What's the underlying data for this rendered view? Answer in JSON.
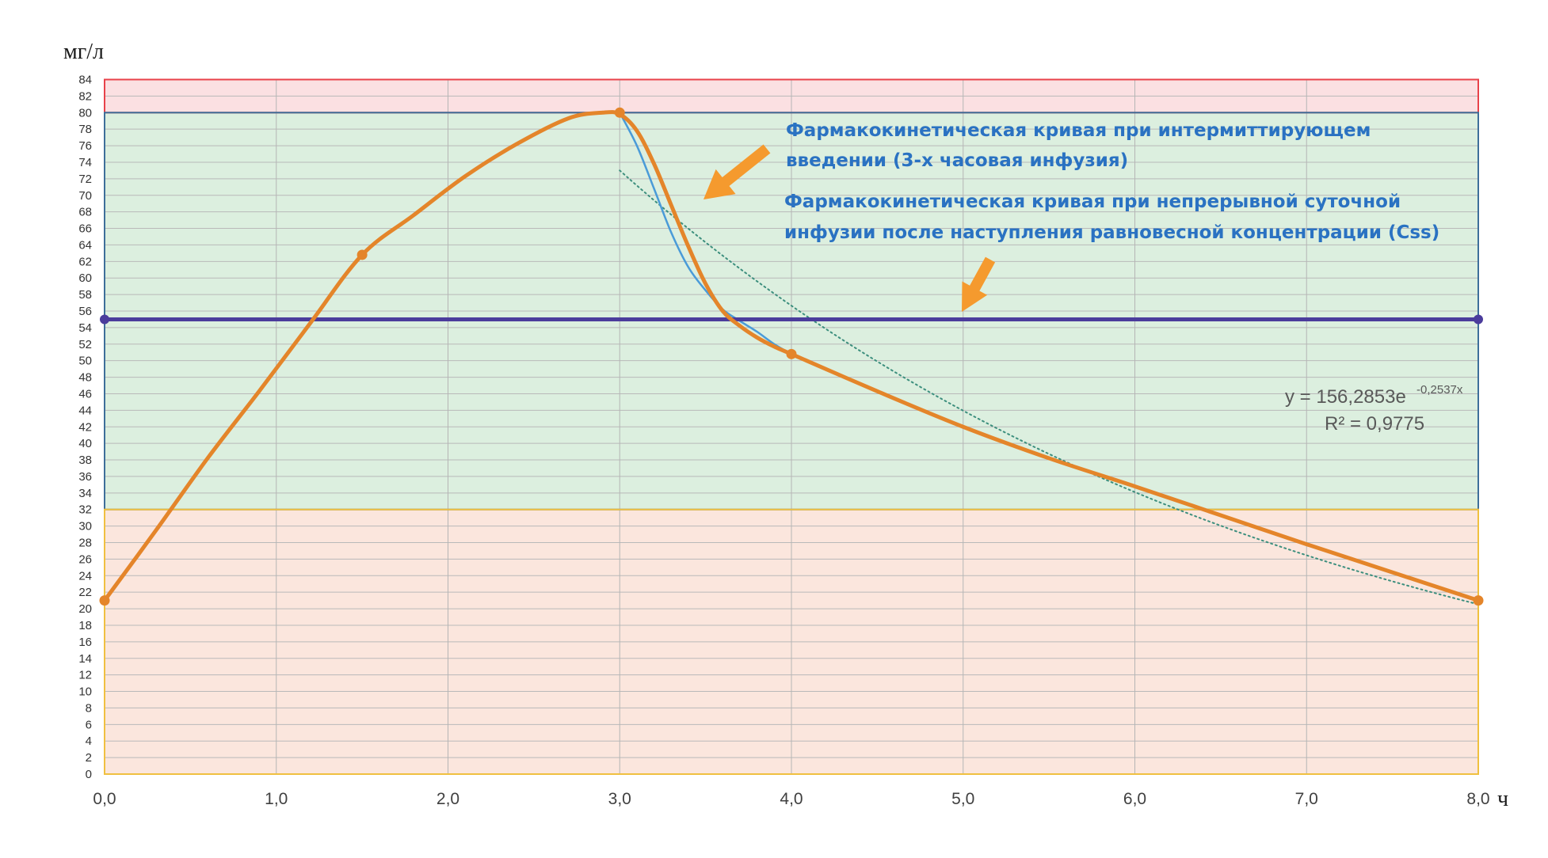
{
  "chart_data": {
    "type": "line",
    "ylabel": "мг/л",
    "xlabel": "ч",
    "xlim": [
      0,
      8
    ],
    "ylim": [
      0,
      84
    ],
    "x_ticks": [
      "0,0",
      "1,0",
      "2,0",
      "3,0",
      "4,0",
      "5,0",
      "6,0",
      "7,0",
      "8,0"
    ],
    "y_ticks": [
      "0",
      "2",
      "4",
      "6",
      "8",
      "10",
      "12",
      "14",
      "16",
      "18",
      "20",
      "22",
      "24",
      "26",
      "28",
      "30",
      "32",
      "34",
      "36",
      "38",
      "40",
      "42",
      "44",
      "46",
      "48",
      "50",
      "52",
      "54",
      "56",
      "58",
      "60",
      "62",
      "64",
      "66",
      "68",
      "70",
      "72",
      "74",
      "76",
      "78",
      "80",
      "82",
      "84"
    ],
    "grid": true,
    "bands": [
      {
        "name": "toxic",
        "from": 80,
        "to": 84,
        "fill": "#fbe0e2",
        "stroke": "#e8424a"
      },
      {
        "name": "therapeutic",
        "from": 32,
        "to": 80,
        "fill": "#dcefdf",
        "stroke": "#3e6f9a"
      },
      {
        "name": "subtherapeutic",
        "from": 0,
        "to": 32,
        "fill": "#fbe6dd",
        "stroke": "#f0c040"
      }
    ],
    "series": [
      {
        "key": "intermittent",
        "color": "#e4852a",
        "points": [
          [
            0,
            21
          ],
          [
            1.5,
            62.8
          ],
          [
            3.0,
            80
          ],
          [
            4.0,
            50.8
          ],
          [
            8.0,
            21
          ]
        ],
        "curve": [
          [
            0,
            21
          ],
          [
            0.3,
            29.5
          ],
          [
            0.6,
            38.2
          ],
          [
            0.9,
            46.3
          ],
          [
            1.2,
            54.6
          ],
          [
            1.5,
            62.8
          ],
          [
            1.8,
            67.6
          ],
          [
            2.1,
            72.3
          ],
          [
            2.4,
            76.2
          ],
          [
            2.7,
            79.3
          ],
          [
            2.9,
            80.0
          ],
          [
            3.0,
            79.8
          ],
          [
            3.1,
            77.8
          ],
          [
            3.2,
            73.8
          ],
          [
            3.3,
            68.8
          ],
          [
            3.4,
            63.8
          ],
          [
            3.5,
            59.3
          ],
          [
            3.6,
            56.0
          ],
          [
            3.7,
            54.2
          ],
          [
            3.8,
            52.8
          ],
          [
            3.9,
            51.7
          ],
          [
            4.0,
            50.8
          ],
          [
            4.5,
            46.3
          ],
          [
            5.0,
            42.0
          ],
          [
            5.5,
            38.2
          ],
          [
            6.0,
            34.8
          ],
          [
            6.5,
            31.3
          ],
          [
            7.0,
            27.8
          ],
          [
            7.5,
            24.4
          ],
          [
            8.0,
            21
          ]
        ]
      },
      {
        "key": "intermittent-fit",
        "color": "#4a9bd8",
        "curve": [
          [
            3.0,
            80
          ],
          [
            3.1,
            76.0
          ],
          [
            3.2,
            70.8
          ],
          [
            3.3,
            65.5
          ],
          [
            3.4,
            61.3
          ],
          [
            3.5,
            58.5
          ],
          [
            3.6,
            56.2
          ],
          [
            3.7,
            54.8
          ],
          [
            3.8,
            53.5
          ],
          [
            3.9,
            52.0
          ],
          [
            4.0,
            50.8
          ]
        ]
      },
      {
        "key": "continuous-css",
        "color": "#4b3c9c",
        "points": [
          [
            0,
            55
          ],
          [
            8.0,
            55
          ]
        ]
      },
      {
        "key": "exponential-trend",
        "color": "#3d8f7e",
        "dotted": true,
        "range": [
          3.0,
          8.0
        ],
        "a": 156.2853,
        "b": -0.2537
      }
    ],
    "annotations": [
      {
        "key": "intermittent-label",
        "lines": [
          "Фармакокинетическая кривая при интермиттирующем",
          "введении (3-х часовая инфузия)"
        ]
      },
      {
        "key": "continuous-label",
        "lines": [
          "Фармакокинетическая кривая при непрерывной суточной",
          "инфузии после наступления равновесной концентрации (Css)"
        ]
      }
    ],
    "trendline_equation": {
      "base": "y = 156,2853e",
      "exponent": "-0,2537x",
      "r2": "R² = 0,9775"
    },
    "arrow_color": "#f59a2e"
  }
}
